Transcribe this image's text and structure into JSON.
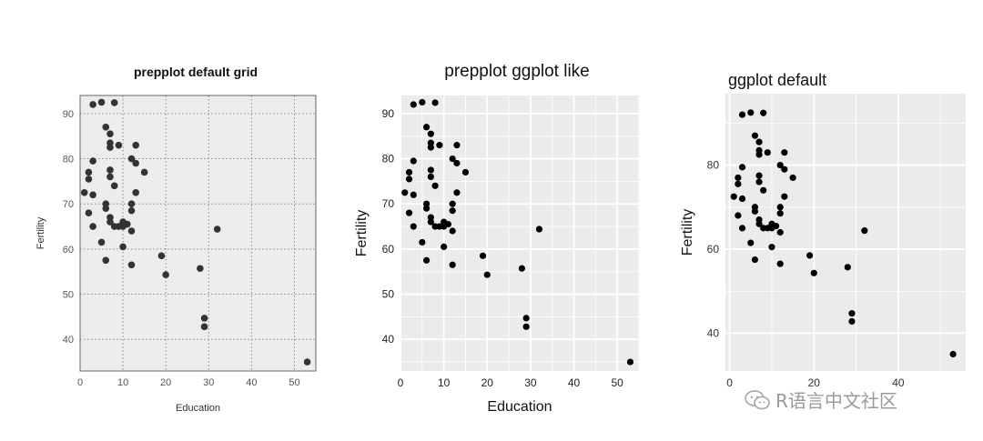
{
  "chart_data": [
    {
      "type": "scatter",
      "title": "prepplot default grid",
      "xlabel": "Education",
      "ylabel": "Fertility",
      "xlim": [
        0,
        55
      ],
      "ylim": [
        33,
        94
      ],
      "xticks": [
        "0",
        "10",
        "20",
        "30",
        "40",
        "50"
      ],
      "yticks": [
        "40",
        "50",
        "60",
        "70",
        "80",
        "90"
      ],
      "grid": "dotted",
      "background": "#ececec"
    },
    {
      "type": "scatter",
      "title": "prepplot ggplot like",
      "xlabel": "Education",
      "ylabel": "Fertility",
      "xlim": [
        0,
        55
      ],
      "ylim": [
        33,
        94
      ],
      "xticks": [
        "0",
        "10",
        "20",
        "30",
        "40",
        "50"
      ],
      "yticks": [
        "40",
        "50",
        "60",
        "70",
        "80",
        "90"
      ],
      "grid": "white-lines",
      "background": "#ebebeb"
    },
    {
      "type": "scatter",
      "title": "ggplot default",
      "xlabel": "",
      "ylabel": "Fertility",
      "xlim": [
        -1,
        56
      ],
      "ylim": [
        31,
        97
      ],
      "xticks": [
        "0",
        "20",
        "40"
      ],
      "yticks": [
        "40",
        "60",
        "80"
      ],
      "grid": "white-lines",
      "background": "#ebebeb"
    }
  ],
  "points": [
    {
      "x": 3,
      "y": 92
    },
    {
      "x": 5,
      "y": 92.5
    },
    {
      "x": 8,
      "y": 92.4
    },
    {
      "x": 6,
      "y": 87
    },
    {
      "x": 7,
      "y": 85.5
    },
    {
      "x": 7,
      "y": 83.5
    },
    {
      "x": 7,
      "y": 82.5
    },
    {
      "x": 9,
      "y": 83
    },
    {
      "x": 13,
      "y": 83
    },
    {
      "x": 3,
      "y": 79.5
    },
    {
      "x": 12,
      "y": 80
    },
    {
      "x": 13,
      "y": 79
    },
    {
      "x": 2,
      "y": 77
    },
    {
      "x": 7,
      "y": 77.5
    },
    {
      "x": 7,
      "y": 76
    },
    {
      "x": 15,
      "y": 77
    },
    {
      "x": 2,
      "y": 75.5
    },
    {
      "x": 8,
      "y": 74
    },
    {
      "x": 1,
      "y": 72.5
    },
    {
      "x": 3,
      "y": 72
    },
    {
      "x": 13,
      "y": 72.5
    },
    {
      "x": 6,
      "y": 70
    },
    {
      "x": 12,
      "y": 70
    },
    {
      "x": 6,
      "y": 69
    },
    {
      "x": 12,
      "y": 68.5
    },
    {
      "x": 2,
      "y": 68
    },
    {
      "x": 7,
      "y": 67
    },
    {
      "x": 7,
      "y": 66
    },
    {
      "x": 10,
      "y": 66
    },
    {
      "x": 8,
      "y": 65
    },
    {
      "x": 9,
      "y": 65
    },
    {
      "x": 10,
      "y": 65
    },
    {
      "x": 11,
      "y": 65.5
    },
    {
      "x": 3,
      "y": 65
    },
    {
      "x": 12,
      "y": 64
    },
    {
      "x": 5,
      "y": 61.5
    },
    {
      "x": 10,
      "y": 60.5
    },
    {
      "x": 19,
      "y": 58.5
    },
    {
      "x": 6,
      "y": 57.5
    },
    {
      "x": 12,
      "y": 56.5
    },
    {
      "x": 28,
      "y": 55.7
    },
    {
      "x": 20,
      "y": 54.3
    },
    {
      "x": 32,
      "y": 64.4
    },
    {
      "x": 29,
      "y": 44.7
    },
    {
      "x": 29,
      "y": 42.8
    },
    {
      "x": 53,
      "y": 35
    }
  ],
  "watermark": {
    "text": "R语言中文社区"
  }
}
